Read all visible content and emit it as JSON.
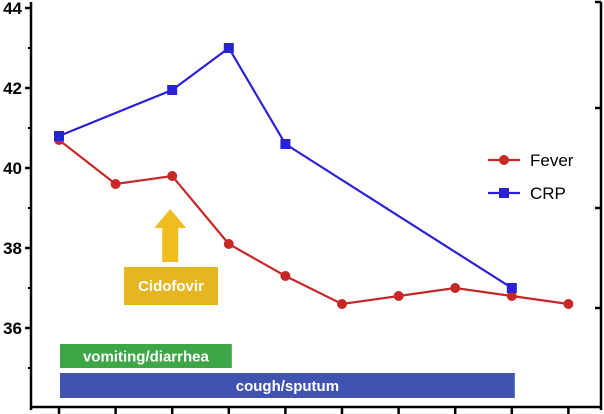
{
  "chart_data": {
    "type": "line",
    "x_count": 10,
    "ylim": [
      34,
      44
    ],
    "y_ticks": [
      36,
      38,
      40,
      42,
      44
    ],
    "y_tick_labels": [
      "36",
      "38",
      "40",
      "42",
      "44"
    ],
    "legend_placement": "right",
    "series": [
      {
        "name": "Fever",
        "color": "#c62828",
        "marker": "circle",
        "points": [
          {
            "x": 0,
            "y": 40.7
          },
          {
            "x": 1,
            "y": 39.6
          },
          {
            "x": 2,
            "y": 39.8
          },
          {
            "x": 3,
            "y": 38.1
          },
          {
            "x": 4,
            "y": 37.3
          },
          {
            "x": 5,
            "y": 36.6
          },
          {
            "x": 6,
            "y": 36.8
          },
          {
            "x": 7,
            "y": 37.0
          },
          {
            "x": 8,
            "y": 36.8
          },
          {
            "x": 9,
            "y": 36.6
          }
        ]
      },
      {
        "name": "CRP",
        "color": "#2a22d4",
        "marker": "square",
        "points": [
          {
            "x": 0,
            "y": 40.8
          },
          {
            "x": 2,
            "y": 41.95
          },
          {
            "x": 3,
            "y": 43.0
          },
          {
            "x": 4,
            "y": 40.6
          },
          {
            "x": 8,
            "y": 37.0
          }
        ]
      }
    ],
    "annotation": {
      "label": "Cidofovir",
      "x": 2,
      "arrow_color": "#efbd1f",
      "box_color": "#e6b622"
    },
    "bars": [
      {
        "label": "vomiting/diarrhea",
        "x_start": 0,
        "x_end": 3,
        "color": "#3fa648"
      },
      {
        "label": "cough/sputum",
        "x_start": 0,
        "x_end": 8,
        "color": "#4153b0"
      }
    ]
  }
}
